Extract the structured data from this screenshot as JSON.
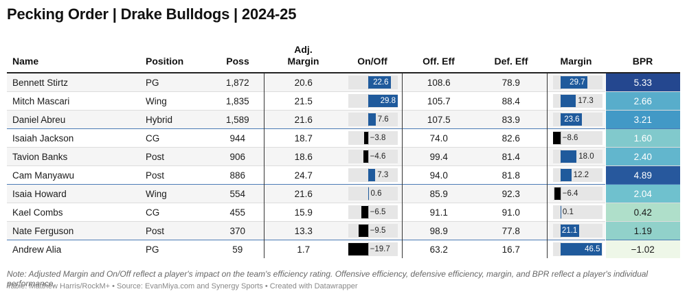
{
  "title": "Pecking Order | Drake Bulldogs | 2024-25",
  "columns": {
    "name": "Name",
    "position": "Position",
    "poss": "Poss",
    "adj_margin_l1": "Adj.",
    "adj_margin_l2": "Margin",
    "on_off": "On/Off",
    "off_eff": "Off. Eff",
    "def_eff": "Def. Eff",
    "margin": "Margin",
    "bpr": "BPR"
  },
  "colors": {
    "bar_positive": "#1f5a9c",
    "bar_negative": "#000000",
    "bar_background": "#e6e6e6",
    "bpr_scale": [
      "#eef7e8",
      "#a9dcc7",
      "#6bbfcf",
      "#2e86c1",
      "#24478f"
    ]
  },
  "chart_data": {
    "type": "table",
    "bar_columns": {
      "on_off": {
        "domain": [
          -19.7,
          29.8
        ]
      },
      "margin": {
        "domain": [
          -8.6,
          46.5
        ]
      }
    },
    "rows": [
      {
        "name": "Bennett Stirtz",
        "position": "PG",
        "poss": "1,872",
        "adj_margin": "20.6",
        "on_off": 22.6,
        "off_eff": "108.6",
        "def_eff": "78.9",
        "margin": 29.7,
        "bpr": 5.33
      },
      {
        "name": "Mitch Mascari",
        "position": "Wing",
        "poss": "1,835",
        "adj_margin": "21.5",
        "on_off": 29.8,
        "off_eff": "105.7",
        "def_eff": "88.4",
        "margin": 17.3,
        "bpr": 2.66
      },
      {
        "name": "Daniel Abreu",
        "position": "Hybrid",
        "poss": "1,589",
        "adj_margin": "21.6",
        "on_off": 7.6,
        "off_eff": "107.5",
        "def_eff": "83.9",
        "margin": 23.6,
        "bpr": 3.21
      },
      {
        "name": "Isaiah Jackson",
        "position": "CG",
        "poss": "944",
        "adj_margin": "18.7",
        "on_off": -3.8,
        "off_eff": "74.0",
        "def_eff": "82.6",
        "margin": -8.6,
        "bpr": 1.6
      },
      {
        "name": "Tavion Banks",
        "position": "Post",
        "poss": "906",
        "adj_margin": "18.6",
        "on_off": -4.6,
        "off_eff": "99.4",
        "def_eff": "81.4",
        "margin": 18.0,
        "bpr": 2.4
      },
      {
        "name": "Cam Manyawu",
        "position": "Post",
        "poss": "886",
        "adj_margin": "24.7",
        "on_off": 7.3,
        "off_eff": "94.0",
        "def_eff": "81.8",
        "margin": 12.2,
        "bpr": 4.89
      },
      {
        "name": "Isaia Howard",
        "position": "Wing",
        "poss": "554",
        "adj_margin": "21.6",
        "on_off": 0.6,
        "off_eff": "85.9",
        "def_eff": "92.3",
        "margin": -6.4,
        "bpr": 2.04
      },
      {
        "name": "Kael Combs",
        "position": "CG",
        "poss": "455",
        "adj_margin": "15.9",
        "on_off": -6.5,
        "off_eff": "91.1",
        "def_eff": "91.0",
        "margin": 0.1,
        "bpr": 0.42
      },
      {
        "name": "Nate Ferguson",
        "position": "Post",
        "poss": "370",
        "adj_margin": "13.3",
        "on_off": -9.5,
        "off_eff": "98.9",
        "def_eff": "77.8",
        "margin": 21.1,
        "bpr": 1.19
      },
      {
        "name": "Andrew Alia",
        "position": "PG",
        "poss": "59",
        "adj_margin": "1.7",
        "on_off": -19.7,
        "off_eff": "63.2",
        "def_eff": "16.7",
        "margin": 46.5,
        "bpr": -1.02
      }
    ]
  },
  "footer": {
    "note": "Note: Adjusted Margin and On/Off reflect a player's impact on the team's efficiency rating. Offensive efficiency, defensive efficiency, margin, and BPR reflect a player's individual performance.",
    "source": "Table: Matthew Harris/RockM+ • Source: EvanMiya.com and Synergy Sports • Created with Datawrapper"
  }
}
